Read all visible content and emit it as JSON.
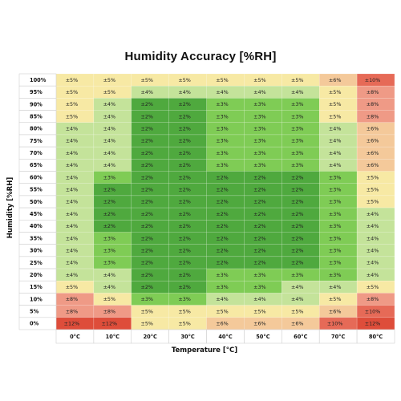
{
  "chart_data": {
    "type": "heatmap",
    "title": "Humidity Accuracy [%RH]",
    "xlabel": "Temperature [°C]",
    "ylabel": "Humidity [%RH]",
    "x_categories": [
      "0°C",
      "10°C",
      "20°C",
      "30°C",
      "40°C",
      "50°C",
      "60°C",
      "70°C",
      "80°C"
    ],
    "y_categories": [
      "100%",
      "95%",
      "90%",
      "85%",
      "80%",
      "75%",
      "70%",
      "65%",
      "60%",
      "55%",
      "50%",
      "45%",
      "40%",
      "35%",
      "30%",
      "25%",
      "20%",
      "15%",
      "10%",
      "5%",
      "0%"
    ],
    "values": [
      [
        5,
        5,
        5,
        5,
        5,
        5,
        5,
        6,
        10
      ],
      [
        5,
        5,
        4,
        4,
        4,
        4,
        4,
        5,
        8
      ],
      [
        5,
        4,
        2,
        2,
        3,
        3,
        3,
        5,
        8
      ],
      [
        5,
        4,
        2,
        2,
        3,
        3,
        3,
        5,
        8
      ],
      [
        4,
        4,
        2,
        2,
        3,
        3,
        3,
        4,
        6
      ],
      [
        4,
        4,
        2,
        2,
        3,
        3,
        3,
        4,
        6
      ],
      [
        4,
        4,
        2,
        2,
        3,
        3,
        3,
        4,
        6
      ],
      [
        4,
        4,
        2,
        2,
        3,
        3,
        3,
        4,
        6
      ],
      [
        4,
        3,
        2,
        2,
        2,
        2,
        2,
        3,
        5
      ],
      [
        4,
        2,
        2,
        2,
        2,
        2,
        2,
        3,
        5
      ],
      [
        4,
        2,
        2,
        2,
        2,
        2,
        2,
        3,
        5
      ],
      [
        4,
        2,
        2,
        2,
        2,
        2,
        2,
        3,
        4
      ],
      [
        4,
        2,
        2,
        2,
        2,
        2,
        2,
        3,
        4
      ],
      [
        4,
        3,
        2,
        2,
        2,
        2,
        2,
        3,
        4
      ],
      [
        4,
        3,
        2,
        2,
        2,
        2,
        2,
        3,
        4
      ],
      [
        4,
        3,
        2,
        2,
        2,
        2,
        2,
        3,
        4
      ],
      [
        4,
        4,
        2,
        2,
        3,
        3,
        3,
        3,
        4
      ],
      [
        5,
        4,
        2,
        2,
        3,
        3,
        4,
        4,
        5
      ],
      [
        8,
        5,
        3,
        3,
        4,
        4,
        4,
        5,
        8
      ],
      [
        8,
        8,
        5,
        5,
        5,
        5,
        5,
        6,
        10
      ],
      [
        12,
        12,
        5,
        5,
        6,
        6,
        6,
        10,
        12
      ]
    ],
    "cell_prefix": "±",
    "cell_suffix": "%",
    "color_scale": {
      "2": "#4fa93e",
      "3": "#7fcc55",
      "4": "#c4e39a",
      "5": "#f7e9a4",
      "6": "#f4c99a",
      "8": "#ef9a86",
      "10": "#e66a57",
      "12": "#de4d3a"
    }
  }
}
